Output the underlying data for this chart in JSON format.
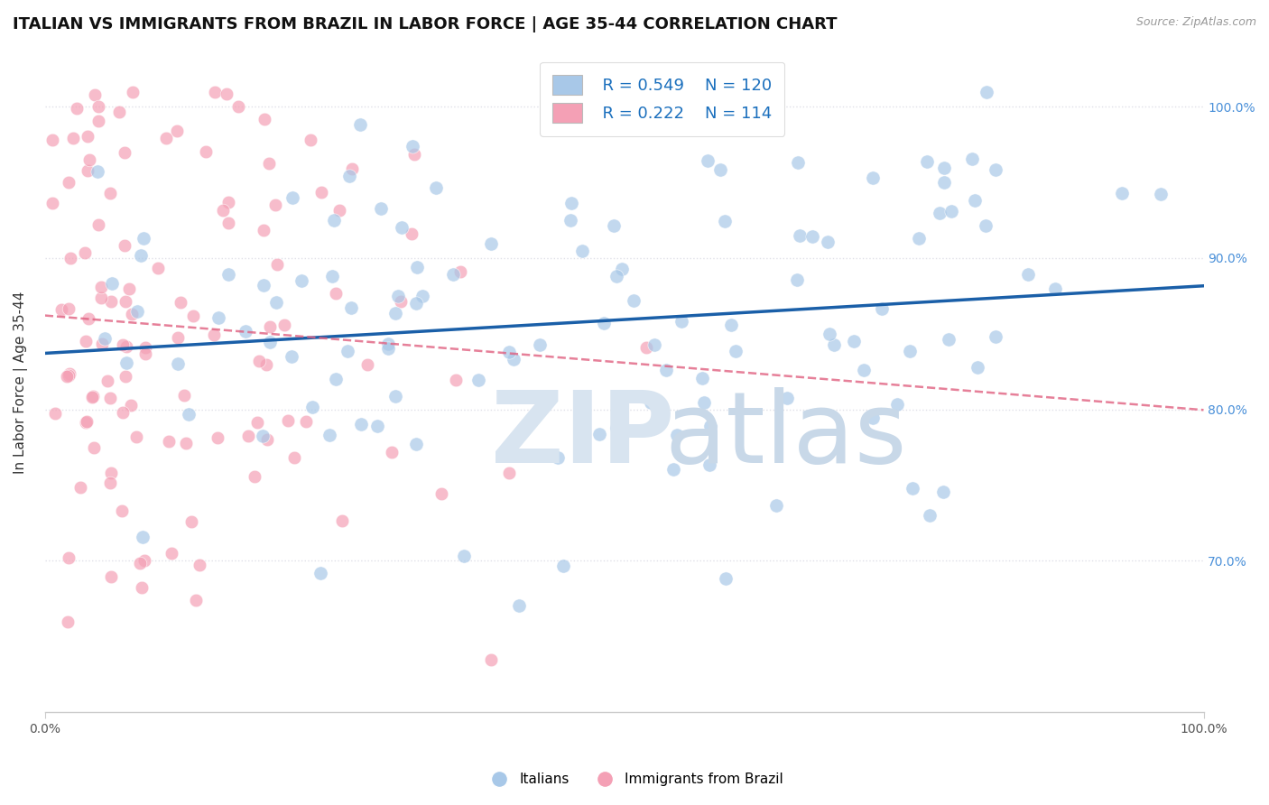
{
  "title": "ITALIAN VS IMMIGRANTS FROM BRAZIL IN LABOR FORCE | AGE 35-44 CORRELATION CHART",
  "source": "Source: ZipAtlas.com",
  "ylabel": "In Labor Force | Age 35-44",
  "legend_blue_R": "R = 0.549",
  "legend_blue_N": "N = 120",
  "legend_pink_R": "R = 0.222",
  "legend_pink_N": "N = 114",
  "legend_label_blue": "Italians",
  "legend_label_pink": "Immigrants from Brazil",
  "blue_color": "#a8c8e8",
  "pink_color": "#f4a0b5",
  "blue_line_color": "#1a5fa8",
  "pink_line_color": "#e06080",
  "grid_color": "#e0e0e8",
  "background_color": "#ffffff",
  "title_fontsize": 13,
  "axis_label_fontsize": 11,
  "watermark_zip_color": "#d8e4f0",
  "watermark_atlas_color": "#c8d8e8"
}
